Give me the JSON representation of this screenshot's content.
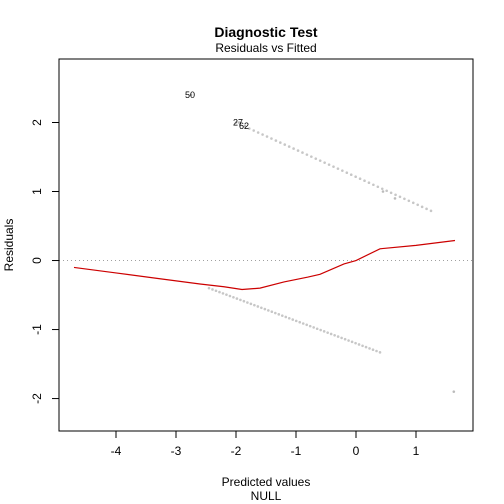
{
  "chart_data": {
    "type": "scatter",
    "title": "Diagnostic Test",
    "subtitle": "Residuals vs Fitted",
    "xlabel": "Predicted values",
    "xlabel2": "NULL",
    "ylabel": "Residuals",
    "xlim": [
      -4.95,
      1.95
    ],
    "ylim": [
      -2.47,
      2.92
    ],
    "x_ticks": [
      -4,
      -3,
      -2,
      -1,
      0,
      1
    ],
    "x_tick_labels": [
      "-4",
      "-3",
      "-2",
      "-1",
      "0",
      "1"
    ],
    "y_ticks": [
      -2,
      -1,
      0,
      1,
      2
    ],
    "y_tick_labels": [
      "-2",
      "-1",
      "0",
      "1",
      "2"
    ],
    "reference_line": {
      "y": 0,
      "style": "dotted",
      "color": "#a0a0a0"
    },
    "point_color": "#b4b4b4",
    "smooth_color": "#cc0000",
    "upper_band": {
      "x_start": -2.0,
      "x_end": 1.25,
      "y_start": 2.0,
      "y_end": 0.72,
      "count": 45
    },
    "lower_band": {
      "x_start": -2.45,
      "x_end": 0.4,
      "y_start": -0.4,
      "y_end": -1.33,
      "count": 50
    },
    "points": [
      {
        "x": 1.63,
        "y": -1.9
      },
      {
        "x": 0.45,
        "y": 1.0
      },
      {
        "x": 0.65,
        "y": 0.9
      },
      {
        "x": -2.75,
        "y": 2.4
      },
      {
        "x": -1.95,
        "y": 2.0
      },
      {
        "x": -1.85,
        "y": 1.95
      }
    ],
    "labeled_points": [
      {
        "label": "50",
        "x": -2.75,
        "y": 2.4
      },
      {
        "label": "27",
        "x": -1.95,
        "y": 2.0
      },
      {
        "label": "62",
        "x": -1.85,
        "y": 1.95
      }
    ],
    "smooth_line": {
      "x": [
        -4.7,
        -4.0,
        -3.3,
        -2.6,
        -2.2,
        -1.9,
        -1.6,
        -1.2,
        -0.8,
        -0.6,
        -0.2,
        0.0,
        0.4,
        1.0,
        1.65
      ],
      "y": [
        -0.1,
        -0.18,
        -0.26,
        -0.34,
        -0.38,
        -0.42,
        -0.4,
        -0.31,
        -0.24,
        -0.2,
        -0.05,
        0.0,
        0.17,
        0.22,
        0.29
      ]
    }
  }
}
